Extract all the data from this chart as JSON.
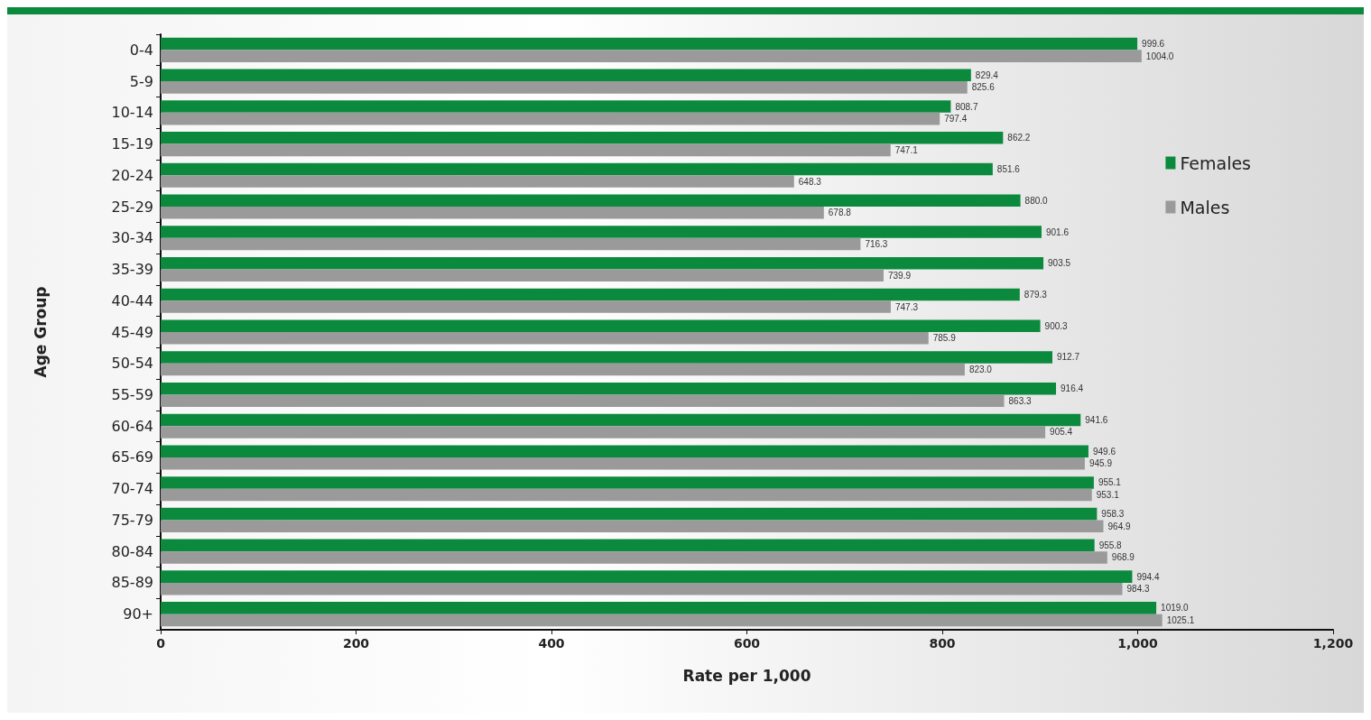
{
  "chart_data": {
    "type": "bar",
    "orientation": "horizontal",
    "xlabel": "Rate per 1,000",
    "ylabel": "Age Group",
    "categories": [
      "0-4",
      "5-9",
      "10-14",
      "15-19",
      "20-24",
      "25-29",
      "30-34",
      "35-39",
      "40-44",
      "45-49",
      "50-54",
      "55-59",
      "60-64",
      "65-69",
      "70-74",
      "75-79",
      "80-84",
      "85-89",
      "90+"
    ],
    "series": [
      {
        "name": "Females",
        "color": "#0b8a3e",
        "values": [
          999.6,
          829.4,
          808.7,
          862.2,
          851.6,
          880.0,
          901.6,
          903.5,
          879.3,
          900.3,
          912.7,
          916.4,
          941.6,
          949.6,
          955.1,
          958.3,
          955.8,
          994.4,
          1019.0
        ],
        "value_labels": [
          "999.6",
          "829.4",
          "808.7",
          "862.2",
          "851.6",
          "880.0",
          "901.6",
          "903.5",
          "879.3",
          "900.3",
          "912.7",
          "916.4",
          "941.6",
          "949.6",
          "955.1",
          "958.3",
          "955.8",
          "994.4",
          "1019.0"
        ]
      },
      {
        "name": "Males",
        "color": "#9a9a9a",
        "values": [
          1004.0,
          825.6,
          797.4,
          747.1,
          648.3,
          678.8,
          716.3,
          739.9,
          747.3,
          785.9,
          823.0,
          863.3,
          905.4,
          945.9,
          953.1,
          964.9,
          968.9,
          984.3,
          1025.1
        ],
        "value_labels": [
          "1004.0",
          "825.6",
          "797.4",
          "747.1",
          "648.3",
          "678.8",
          "716.3",
          "739.9",
          "747.3",
          "785.9",
          "823.0",
          "863.3",
          "905.4",
          "945.9",
          "953.1",
          "964.9",
          "968.9",
          "984.3",
          "1025.1"
        ]
      }
    ],
    "xlim": [
      0,
      1200
    ],
    "xticks": [
      0,
      200,
      400,
      600,
      800,
      {
        "value": 1000,
        "label": "1,000"
      },
      {
        "value": 1200,
        "label": "1,200"
      }
    ],
    "grid": false,
    "legend": "top right"
  }
}
